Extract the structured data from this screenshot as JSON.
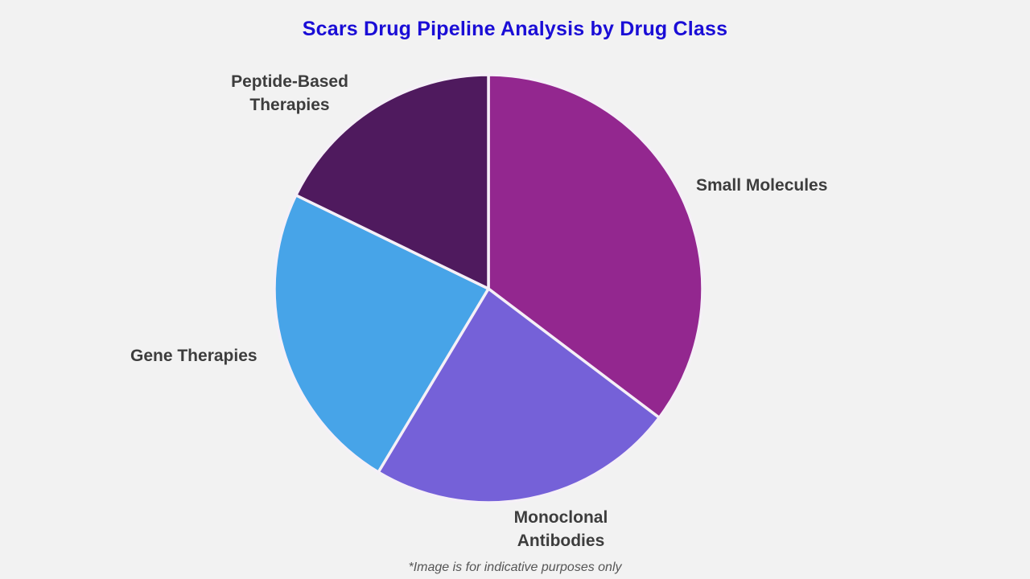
{
  "page": {
    "title": "Scars Drug Pipeline Analysis by Drug Class",
    "footnote": "*Image is for indicative purposes only",
    "background_color": "#f2f2f2",
    "title_color": "#1a0dd6",
    "label_color": "#3d3d3d"
  },
  "chart_data": {
    "type": "pie",
    "title": "Scars Drug Pipeline Analysis by Drug Class",
    "categories": [
      "Small Molecules",
      "Monoclonal Antibodies",
      "Gene Therapies",
      "Peptide-Based Therapies"
    ],
    "values": [
      35.3,
      23.3,
      23.6,
      17.8
    ],
    "value_format": "percent-estimated-from-arc-angles",
    "colors": [
      "#93278f",
      "#7561d8",
      "#47a4e8",
      "#4f1a5e"
    ],
    "start_angle_deg": 0,
    "direction": "clockwise",
    "separator_color": "#f5f0f7",
    "legend": "none",
    "labels_position": "outside"
  }
}
